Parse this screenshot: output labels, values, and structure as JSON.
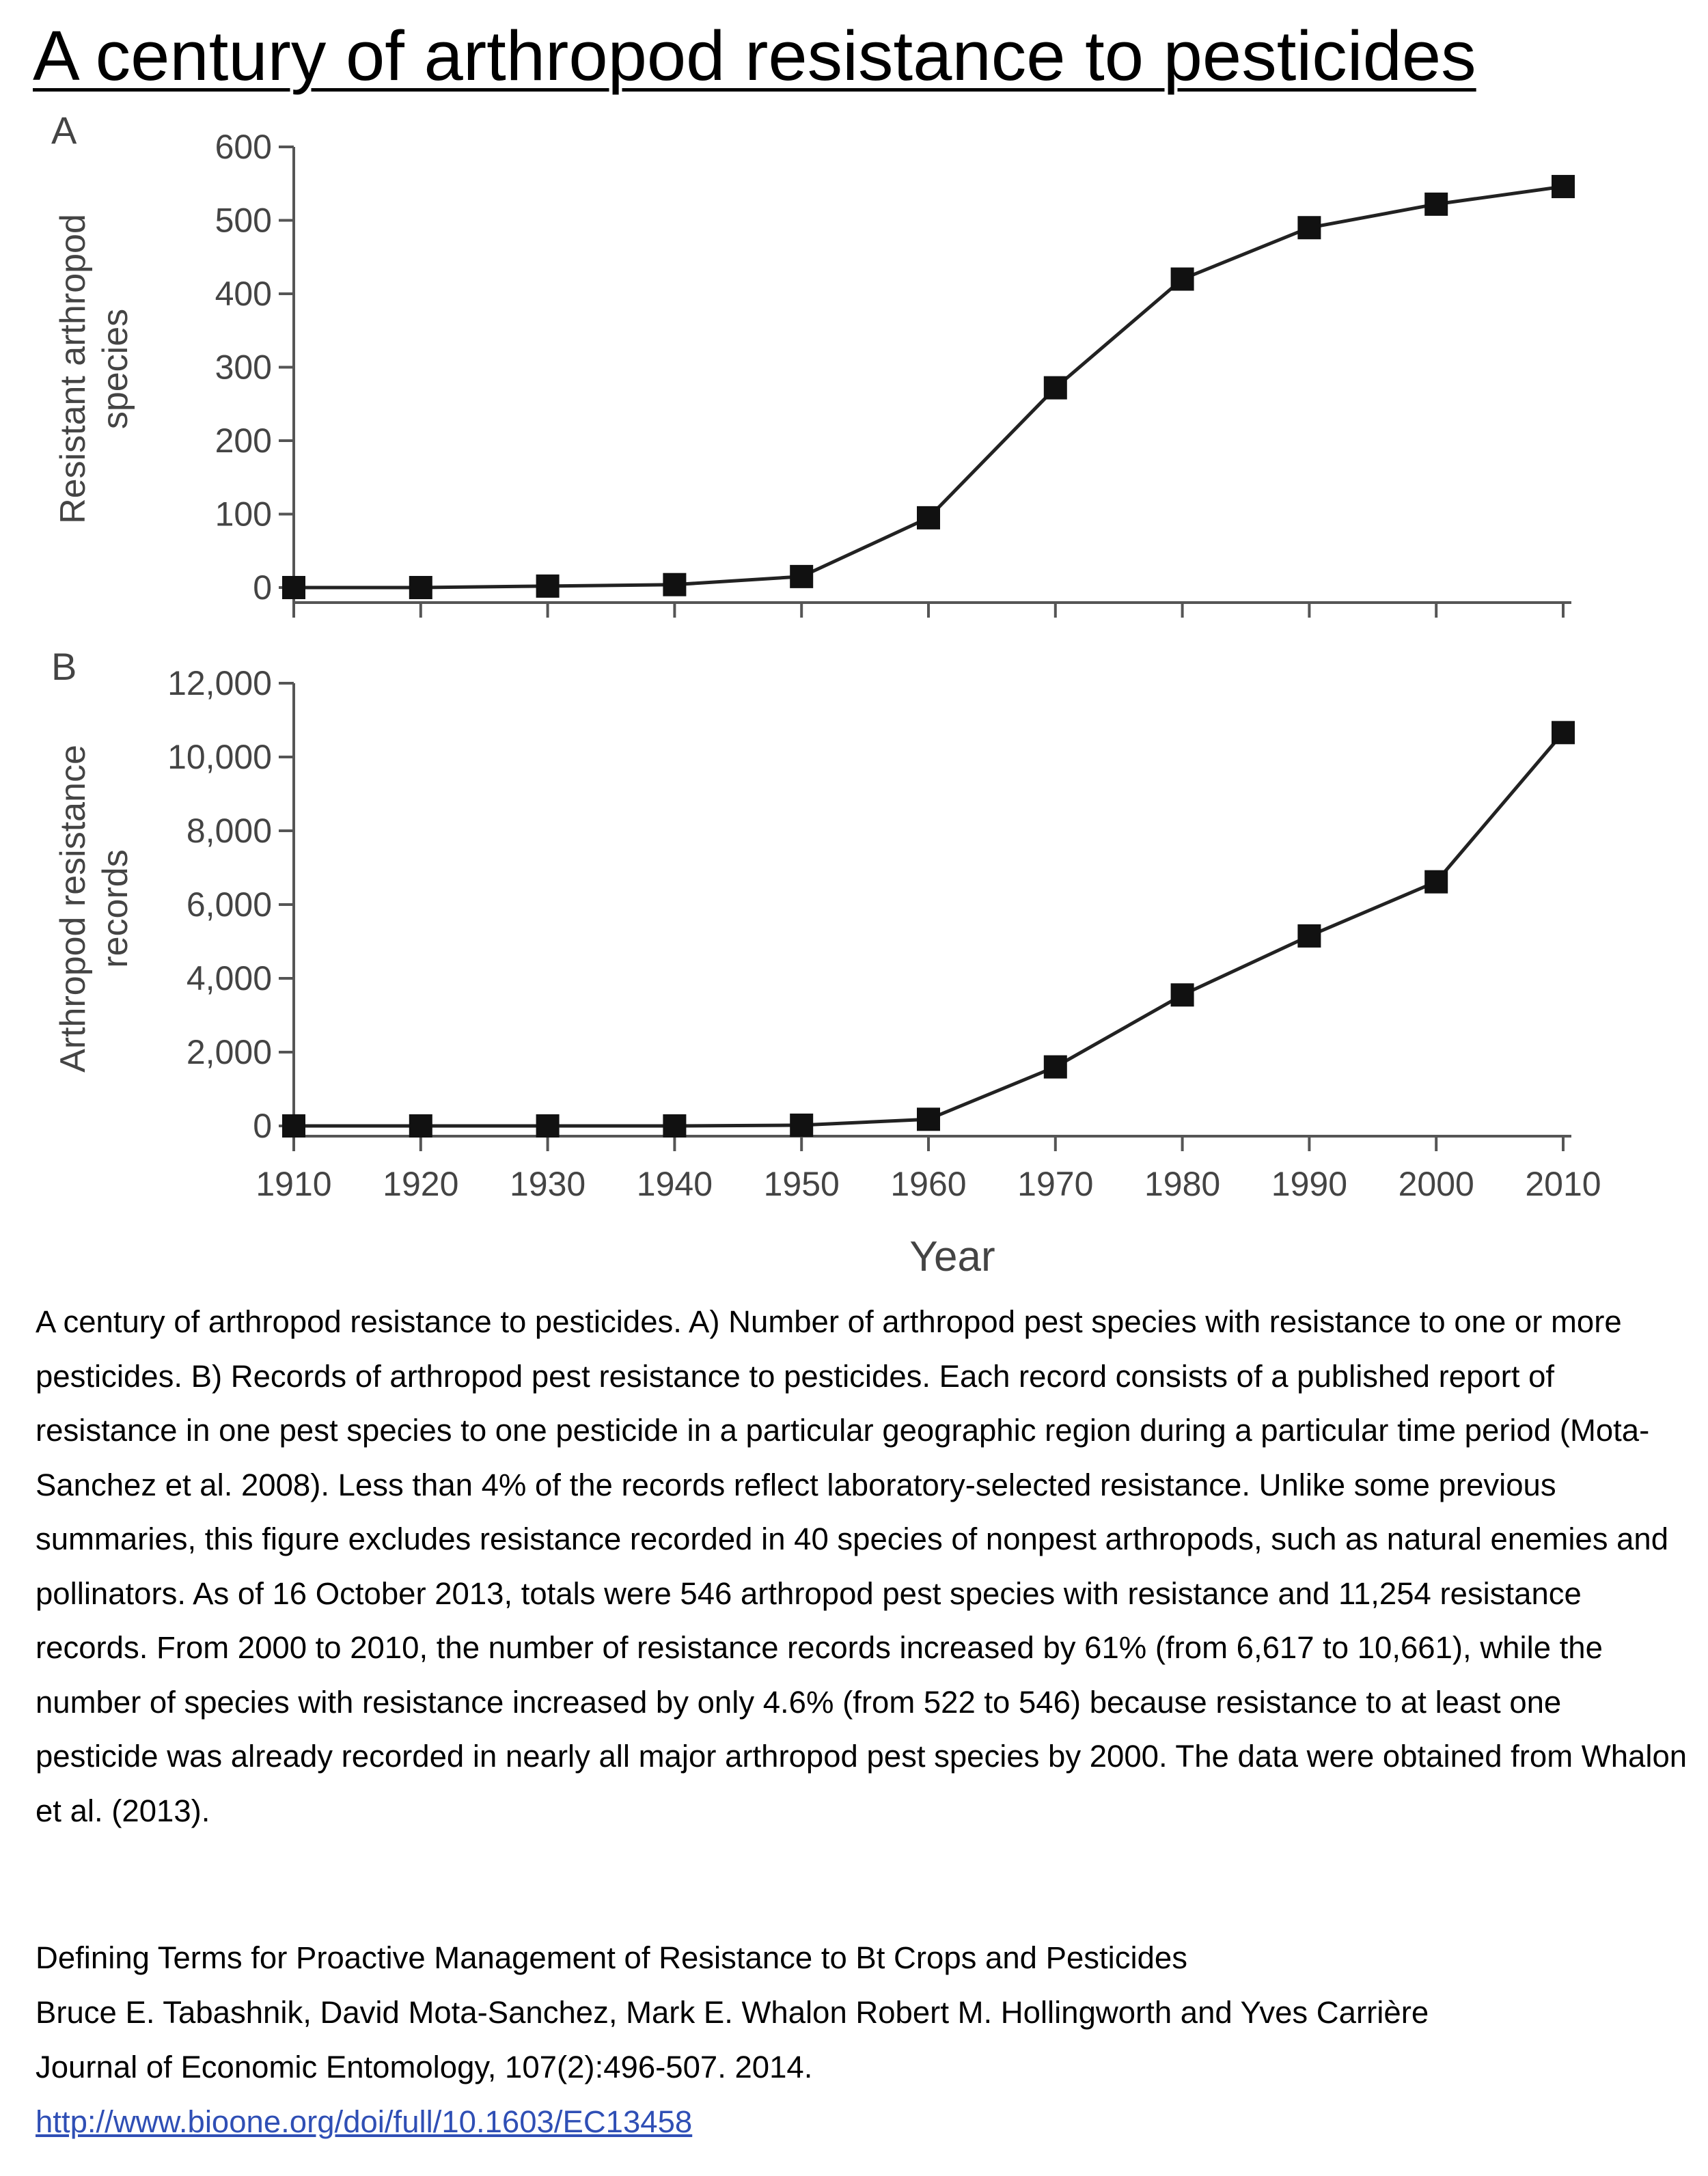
{
  "title": "A century of arthropod resistance to pesticides",
  "chart_data": [
    {
      "type": "line",
      "panel_label": "A",
      "ylabel": "Resistant arthropod\nspecies",
      "xlabel": "",
      "x": [
        1910,
        1920,
        1930,
        1940,
        1950,
        1960,
        1970,
        1980,
        1990,
        2000,
        2010
      ],
      "series": [
        {
          "values": [
            0,
            0,
            2,
            4,
            15,
            95,
            272,
            420,
            490,
            522,
            546
          ]
        }
      ],
      "ylim": [
        0,
        600
      ],
      "xlim": [
        1910,
        2010
      ],
      "yticks": [
        0,
        100,
        200,
        300,
        400,
        500,
        600
      ],
      "ytick_labels": [
        "0",
        "100",
        "200",
        "300",
        "400",
        "500",
        "600"
      ],
      "marker": "square",
      "line_color": "#222222",
      "axis_color": "#555555"
    },
    {
      "type": "line",
      "panel_label": "B",
      "ylabel": "Arthropod resistance\nrecords",
      "xlabel": "Year",
      "x": [
        1910,
        1920,
        1930,
        1940,
        1950,
        1960,
        1970,
        1980,
        1990,
        2000,
        2010
      ],
      "series": [
        {
          "values": [
            0,
            0,
            0,
            0,
            20,
            180,
            1600,
            3550,
            5150,
            6617,
            10661
          ]
        }
      ],
      "ylim": [
        0,
        12000
      ],
      "xlim": [
        1910,
        2010
      ],
      "yticks": [
        0,
        2000,
        4000,
        6000,
        8000,
        10000,
        12000
      ],
      "ytick_labels": [
        "0",
        "2,000",
        "4,000",
        "6,000",
        "8,000",
        "10,000",
        "12,000"
      ],
      "xtick_labels": [
        "1910",
        "1920",
        "1930",
        "1940",
        "1950",
        "1960",
        "1970",
        "1980",
        "1990",
        "2000",
        "2010"
      ],
      "marker": "square",
      "line_color": "#222222",
      "axis_color": "#555555"
    }
  ],
  "caption": "A century of arthropod resistance to pesticides. A) Number of arthropod pest species with resistance to one or more pesticides. B) Records of arthropod pest resistance to pesticides. Each record consists of a published report of resistance in one pest species to one pesticide in a particular geographic region during a particular time period (Mota-Sanchez et al. 2008). Less than 4% of the records reflect laboratory-selected resistance. Unlike some previous summaries, this figure excludes resistance recorded in 40 species of nonpest arthropods, such as natural enemies and pollinators. As of 16 October 2013, totals were 546 arthropod pest species with resistance and 11,254 resistance records. From 2000 to 2010, the number of resistance records increased by 61% (from 6,617 to 10,661), while the number of species with resistance increased by only 4.6% (from 522 to 546) because resistance to at least one pesticide was already recorded in nearly all major arthropod pest species by 2000. The data were obtained from Whalon et al. (2013).",
  "reference": {
    "article_title": "Defining Terms for Proactive Management of Resistance to Bt Crops and Pesticides",
    "authors": "Bruce E. Tabashnik, David Mota-Sanchez, Mark E. Whalon Robert M. Hollingworth and Yves Carrière",
    "journal": "Journal of Economic Entomology, 107(2):496-507. 2014.",
    "link": "http://www.bioone.org/doi/full/10.1603/EC13458"
  }
}
